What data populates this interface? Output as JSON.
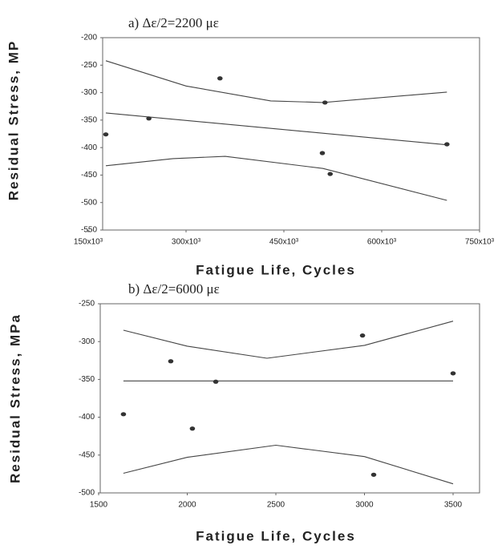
{
  "chart_data": [
    {
      "type": "scatter",
      "title": "a) Δε/2=2200 με",
      "x_label": "Fatigue Life, Cycles",
      "y_label": "Residual Stress, MP",
      "x": [
        177000,
        243000,
        352000,
        513000,
        509000,
        521000,
        700000
      ],
      "values": [
        -376,
        -347,
        -274,
        -318,
        -410,
        -448,
        -394
      ],
      "color": "#333333",
      "curves": [
        {
          "x": [
            177000,
            300000,
            430000,
            510000,
            700000
          ],
          "values": [
            -242,
            -288,
            -315,
            -318,
            -299
          ]
        },
        {
          "x": [
            177000,
            700000
          ],
          "values": [
            -337,
            -395
          ]
        },
        {
          "x": [
            177000,
            280000,
            360000,
            510000,
            700000
          ],
          "values": [
            -433,
            -420,
            -416,
            -438,
            -496
          ]
        }
      ],
      "xlim": [
        150000,
        750000
      ],
      "xticks": [
        {
          "value": 150000,
          "label": "150x10³"
        },
        {
          "value": 300000,
          "label": "300x10³"
        },
        {
          "value": 450000,
          "label": "450x10³"
        },
        {
          "value": 600000,
          "label": "600x10³"
        },
        {
          "value": 750000,
          "label": "750x10³"
        }
      ],
      "ylim": [
        -550,
        -200
      ],
      "yticks": [
        -550,
        -500,
        -450,
        -400,
        -350,
        -300,
        -250,
        -200
      ]
    },
    {
      "type": "scatter",
      "title": "b) Δε/2=6000 με",
      "x_label": "Fatigue Life, Cycles",
      "y_label": "Residual Stress, MPa",
      "x": [
        1640,
        1907,
        2029,
        2161,
        2989,
        3052,
        3500
      ],
      "values": [
        -396,
        -326,
        -415,
        -353,
        -292,
        -476,
        -342
      ],
      "color": "#333333",
      "curves": [
        {
          "x": [
            1640,
            2000,
            2450,
            3000,
            3500
          ],
          "values": [
            -285,
            -306,
            -322,
            -305,
            -273
          ]
        },
        {
          "x": [
            1640,
            3500
          ],
          "values": [
            -352,
            -352
          ]
        },
        {
          "x": [
            1640,
            2000,
            2500,
            3000,
            3500
          ],
          "values": [
            -474,
            -453,
            -437,
            -452,
            -488
          ]
        }
      ],
      "xlim": [
        1500,
        3500
      ],
      "xticks": [
        1500,
        2000,
        2500,
        3000,
        3500
      ],
      "ylim": [
        -500,
        -250
      ],
      "yticks": [
        -500,
        -450,
        -400,
        -350,
        -300,
        -250
      ]
    }
  ]
}
